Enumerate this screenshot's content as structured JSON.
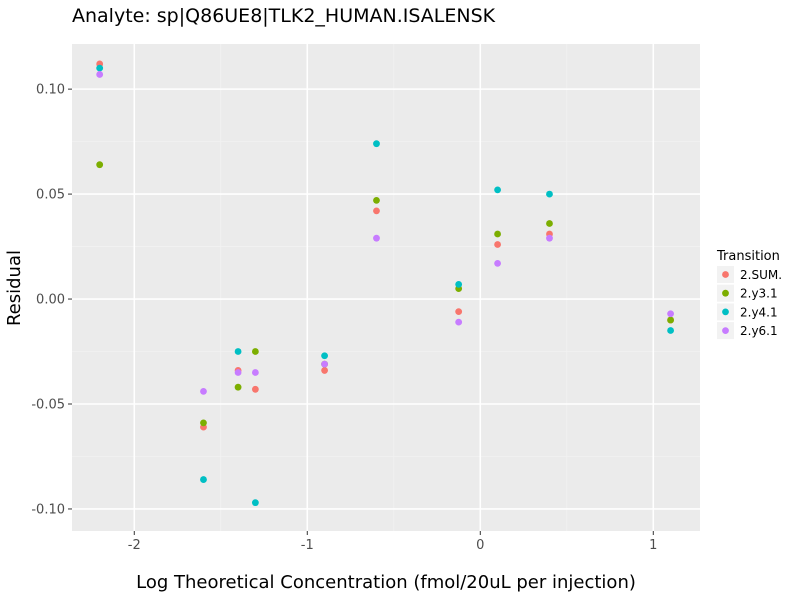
{
  "chart_data": {
    "type": "scatter",
    "title": "Analyte: sp|Q86UE8|TLK2_HUMAN.ISALENSK",
    "xlabel": "Log Theoretical Concentration (fmol/20uL per injection)",
    "ylabel": "Residual",
    "xlim": [
      -2.36,
      1.27
    ],
    "ylim": [
      -0.1105,
      0.1215
    ],
    "xticks": [
      -2,
      -1,
      0,
      1
    ],
    "xtick_labels": [
      "-2",
      "-1",
      "0",
      "1"
    ],
    "yticks": [
      -0.1,
      -0.05,
      0.0,
      0.05,
      0.1
    ],
    "ytick_labels": [
      "-0.10",
      "-0.05",
      "0.00",
      "0.05",
      "0.10"
    ],
    "grid": true,
    "legend": {
      "title": "Transition",
      "position": "right"
    },
    "series": [
      {
        "name": "2.SUM.",
        "color": "#F8766D",
        "x": [
          -2.2,
          -1.6,
          -1.4,
          -1.3,
          -0.9,
          -0.6,
          -0.125,
          0.1,
          0.4,
          1.1
        ],
        "y": [
          0.112,
          -0.061,
          -0.034,
          -0.043,
          -0.034,
          0.042,
          -0.006,
          0.026,
          0.031,
          -0.01
        ]
      },
      {
        "name": "2.y3.1",
        "color": "#7CAE00",
        "x": [
          -2.2,
          -1.6,
          -1.4,
          -1.3,
          -0.9,
          -0.6,
          -0.125,
          0.1,
          0.4,
          1.1
        ],
        "y": [
          0.064,
          -0.059,
          -0.042,
          -0.025,
          -0.031,
          0.047,
          0.005,
          0.031,
          0.036,
          -0.01
        ]
      },
      {
        "name": "2.y4.1",
        "color": "#00BFC4",
        "x": [
          -2.2,
          -1.6,
          -1.4,
          -1.3,
          -0.9,
          -0.6,
          -0.125,
          0.1,
          0.4,
          1.1
        ],
        "y": [
          0.11,
          -0.086,
          -0.025,
          -0.097,
          -0.027,
          0.074,
          0.007,
          0.052,
          0.05,
          -0.015
        ]
      },
      {
        "name": "2.y6.1",
        "color": "#C77CFF",
        "x": [
          -2.2,
          -1.6,
          -1.4,
          -1.3,
          -0.9,
          -0.6,
          -0.125,
          0.1,
          0.4,
          1.1
        ],
        "y": [
          0.107,
          -0.044,
          -0.035,
          -0.035,
          -0.031,
          0.029,
          -0.011,
          0.017,
          0.029,
          -0.007
        ]
      }
    ]
  }
}
